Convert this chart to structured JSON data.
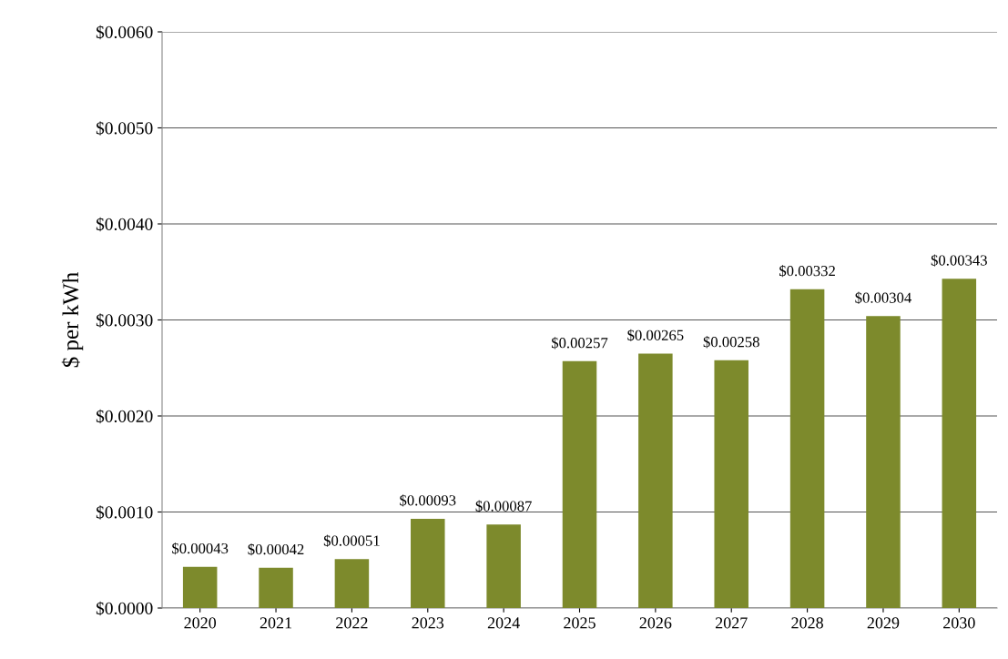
{
  "chart_data": {
    "type": "bar",
    "ylabel": "$ per kWh",
    "categories": [
      "2020",
      "2021",
      "2022",
      "2023",
      "2024",
      "2025",
      "2026",
      "2027",
      "2028",
      "2029",
      "2030"
    ],
    "values": [
      0.00043,
      0.00042,
      0.00051,
      0.00093,
      0.00087,
      0.00257,
      0.00265,
      0.00258,
      0.00332,
      0.00304,
      0.00343
    ],
    "value_labels": [
      "$0.00043",
      "$0.00042",
      "$0.00051",
      "$0.00093",
      "$0.00087",
      "$0.00257",
      "$0.00265",
      "$0.00258",
      "$0.00332",
      "$0.00304",
      "$0.00343"
    ],
    "color": "#7d8a2c",
    "ylim": [
      0,
      0.006
    ],
    "yticks": [
      {
        "value": 0,
        "label": "$0.0000"
      },
      {
        "value": 0.001,
        "label": "$0.0010"
      },
      {
        "value": 0.002,
        "label": "$0.0020"
      },
      {
        "value": 0.003,
        "label": "$0.0030"
      },
      {
        "value": 0.004,
        "label": "$0.0040"
      },
      {
        "value": 0.005,
        "label": "$0.0050"
      },
      {
        "value": 0.006,
        "label": "$0.0060"
      }
    ],
    "grid": "y",
    "legend": false
  }
}
